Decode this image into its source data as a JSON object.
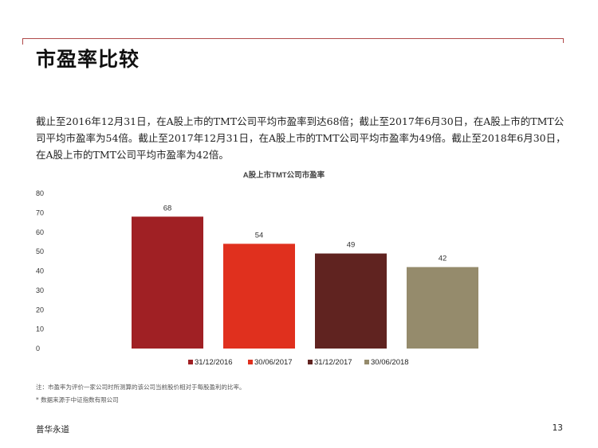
{
  "page": {
    "title": "市盈率比较",
    "intro": "截止至2016年12月31日，在A股上市的TMT公司平均市盈率到达68倍；截止至2017年6月30日，在A股上市的TMT公司平均市盈率为54倍。截止至2017年12月31日，在A股上市的TMT公司平均市盈率为49倍。截止至2018年6月30日，在A股上市的TMT公司平均市盈率为42倍。",
    "note1": "注：市盈率为评价一家公司时所测算的该公司当前股价相对于每股盈利的比率。",
    "note2": "* 数据来源于中证指数有限公司",
    "footer_brand": "普华永道",
    "page_number": "13"
  },
  "chart_data": {
    "type": "bar",
    "title": "A股上市TMT公司市盈率",
    "categories": [
      "31/12/2016",
      "30/06/2017",
      "31/12/2017",
      "30/06/2018"
    ],
    "values": [
      68,
      54,
      49,
      42
    ],
    "colors": [
      "#a02024",
      "#e0301e",
      "#602320",
      "#958b6c"
    ],
    "ylim": [
      0,
      80
    ],
    "yticks": [
      0,
      10,
      20,
      30,
      40,
      50,
      60,
      70,
      80
    ],
    "xlabel": "",
    "ylabel": "",
    "grid": false,
    "legend_position": "bottom"
  }
}
